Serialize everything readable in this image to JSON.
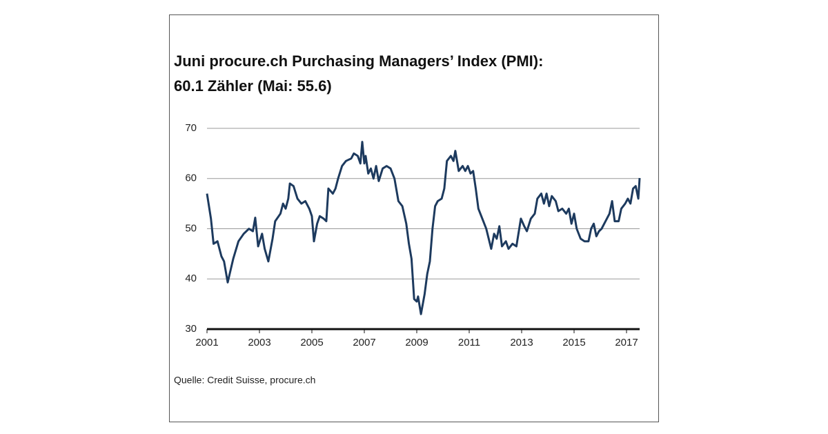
{
  "chart_data": {
    "type": "line",
    "title": [
      "Juni procure.ch Purchasing Managers’ Index (PMI):",
      "60.1 Zähler (Mai: 55.6)"
    ],
    "note": "Quelle: Credit Suisse, procure.ch",
    "x": [
      2001.0,
      2001.15,
      2001.25,
      2001.4,
      2001.55,
      2001.65,
      2001.79,
      2002.0,
      2002.2,
      2002.4,
      2002.6,
      2002.75,
      2002.84,
      2002.95,
      2003.1,
      2003.2,
      2003.34,
      2003.5,
      2003.6,
      2003.8,
      2003.9,
      2004.0,
      2004.1,
      2004.16,
      2004.3,
      2004.45,
      2004.6,
      2004.75,
      2004.9,
      2005.0,
      2005.08,
      2005.2,
      2005.3,
      2005.45,
      2005.55,
      2005.63,
      2005.8,
      2005.9,
      2006.0,
      2006.15,
      2006.3,
      2006.5,
      2006.6,
      2006.75,
      2006.85,
      2006.92,
      2007.0,
      2007.05,
      2007.15,
      2007.25,
      2007.35,
      2007.45,
      2007.55,
      2007.7,
      2007.85,
      2008.0,
      2008.15,
      2008.3,
      2008.45,
      2008.6,
      2008.7,
      2008.8,
      2008.9,
      2009.0,
      2009.05,
      2009.16,
      2009.3,
      2009.4,
      2009.5,
      2009.6,
      2009.7,
      2009.8,
      2009.95,
      2010.05,
      2010.15,
      2010.3,
      2010.4,
      2010.47,
      2010.6,
      2010.75,
      2010.85,
      2010.95,
      2011.05,
      2011.15,
      2011.25,
      2011.35,
      2011.5,
      2011.65,
      2011.84,
      2011.95,
      2012.05,
      2012.15,
      2012.25,
      2012.4,
      2012.5,
      2012.65,
      2012.8,
      2012.97,
      2013.1,
      2013.2,
      2013.35,
      2013.5,
      2013.6,
      2013.75,
      2013.85,
      2013.95,
      2014.05,
      2014.15,
      2014.3,
      2014.4,
      2014.55,
      2014.7,
      2014.8,
      2014.9,
      2015.0,
      2015.1,
      2015.25,
      2015.4,
      2015.55,
      2015.65,
      2015.75,
      2015.85,
      2015.95,
      2016.05,
      2016.2,
      2016.35,
      2016.45,
      2016.55,
      2016.7,
      2016.8,
      2016.95,
      2017.05,
      2017.15,
      2017.25,
      2017.35,
      2017.45,
      2017.5
    ],
    "series": [
      {
        "name": "PMI",
        "color": "#1d3a5e",
        "values": [
          57,
          52,
          47,
          47.5,
          44.5,
          43.5,
          39.3,
          44,
          47.5,
          49,
          50,
          49.5,
          52.2,
          46.5,
          49,
          46,
          43.5,
          48,
          51.5,
          53,
          55,
          54,
          56,
          59,
          58.5,
          56,
          55,
          55.5,
          54,
          52.5,
          47.5,
          51,
          52.5,
          52,
          51.5,
          58,
          57,
          58,
          60,
          62.5,
          63.5,
          64,
          65,
          64.5,
          63,
          67.3,
          63,
          64.5,
          61,
          62,
          60,
          62.5,
          59.5,
          62,
          62.5,
          62,
          60,
          55.5,
          54.5,
          51,
          47,
          44,
          36,
          35.5,
          36.5,
          33,
          37,
          41,
          43.5,
          50,
          54.5,
          55.5,
          56,
          58,
          63.5,
          64.5,
          63.5,
          65.5,
          61.5,
          62.5,
          61.5,
          62.5,
          61,
          61.5,
          58,
          54,
          52,
          50,
          46,
          49,
          48,
          50.5,
          46.5,
          47.5,
          46,
          47,
          46.5,
          52,
          50.5,
          49.5,
          52,
          53,
          56,
          57,
          55,
          57,
          54.5,
          56.5,
          55.5,
          53.5,
          54,
          53,
          54,
          51,
          53,
          50,
          48,
          47.5,
          47.5,
          50,
          51,
          48.5,
          49.5,
          50,
          51.5,
          53,
          55.5,
          51.5,
          51.5,
          54,
          55,
          56,
          55,
          58,
          58.5,
          56,
          60.1
        ]
      }
    ],
    "xlim": [
      2001,
      2017.5
    ],
    "xticks": [
      2001,
      2003,
      2005,
      2007,
      2009,
      2011,
      2013,
      2015,
      2017
    ],
    "ylim": [
      30,
      70
    ],
    "yticks": [
      30,
      40,
      50,
      60,
      70
    ],
    "grid": true
  }
}
